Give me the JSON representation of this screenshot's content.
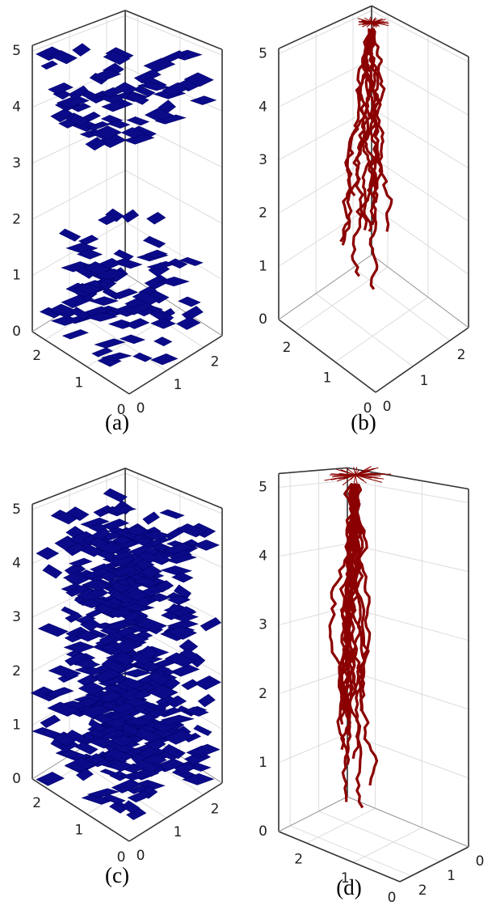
{
  "panels": [
    {
      "caption": "(a)",
      "xlim": [
        0,
        2.3
      ],
      "ylim": [
        0,
        2.5
      ],
      "zlim": [
        0,
        5.1
      ],
      "xticks": [
        0,
        1,
        2
      ],
      "yticks": [
        0,
        1,
        2
      ],
      "zticks": [
        0,
        1,
        2,
        3,
        4,
        5
      ],
      "y_reversed": false
    },
    {
      "caption": "(b)",
      "xlim": [
        0,
        2.4
      ],
      "ylim": [
        0,
        2.5
      ],
      "zlim": [
        0,
        5.1
      ],
      "xticks": [
        0,
        1,
        2
      ],
      "yticks": [
        0,
        1,
        2
      ],
      "zticks": [
        0,
        1,
        2,
        3,
        4,
        5
      ],
      "y_reversed": false
    },
    {
      "caption": "(c)",
      "xlim": [
        0,
        2.3
      ],
      "ylim": [
        0,
        2.5
      ],
      "zlim": [
        0,
        5.1
      ],
      "xticks": [
        0,
        1,
        2
      ],
      "yticks": [
        0,
        1,
        2
      ],
      "zticks": [
        0,
        1,
        2,
        3,
        4,
        5
      ],
      "y_reversed": false
    },
    {
      "caption": "(d)",
      "xlim": [
        0,
        2.6
      ],
      "ylim": [
        0,
        2.4
      ],
      "zlim": [
        0,
        5.2
      ],
      "xticks": [
        0,
        1,
        2
      ],
      "yticks": [
        0,
        1,
        2
      ],
      "zticks": [
        0,
        1,
        2,
        3,
        4,
        5
      ],
      "y_reversed": true
    }
  ]
}
